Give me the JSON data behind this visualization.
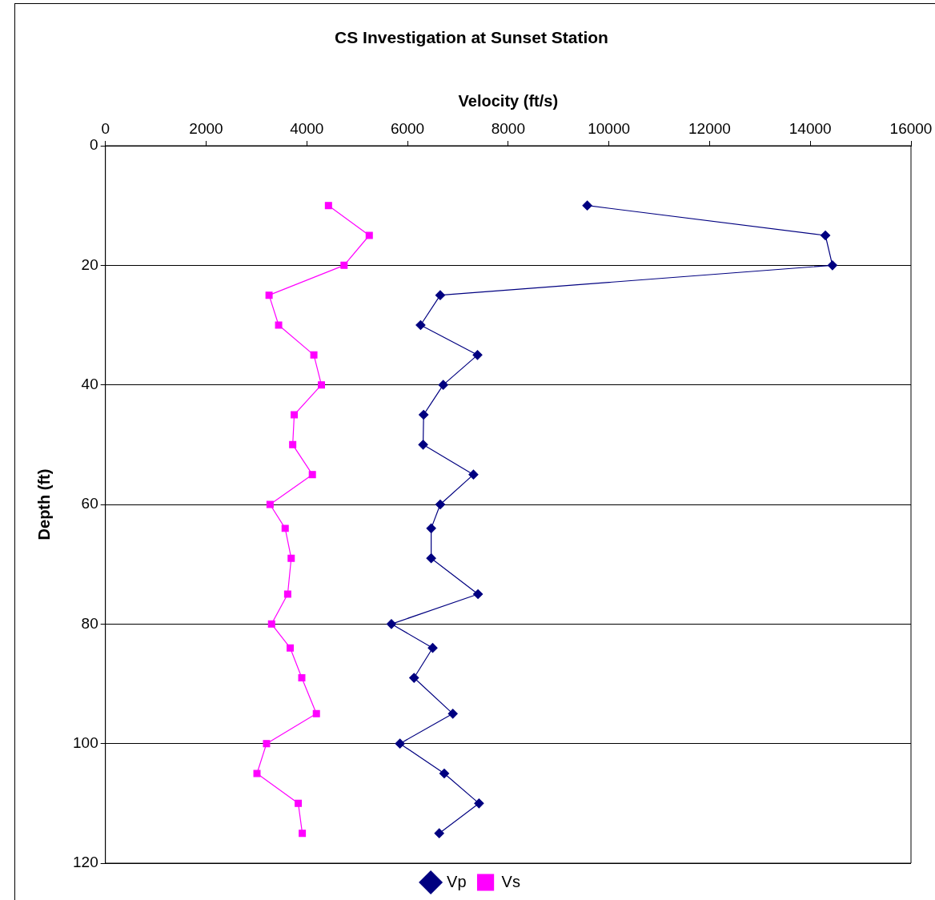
{
  "chart_data": {
    "type": "line",
    "title": "CS Investigation at Sunset Station",
    "xlabel": "Velocity (ft/s)",
    "ylabel": "Depth (ft)",
    "xlim": [
      0,
      16000
    ],
    "xticks": [
      0,
      2000,
      4000,
      6000,
      8000,
      10000,
      12000,
      14000,
      16000
    ],
    "ylim": [
      120,
      0
    ],
    "yticks": [
      0,
      20,
      40,
      60,
      80,
      100,
      120
    ],
    "grid": "y",
    "legend": "bottom",
    "series": [
      {
        "name": "Vp",
        "color": "#000080",
        "marker": "diamond",
        "x": [
          9570,
          14300,
          14440,
          6650,
          6260,
          7390,
          6710,
          6320,
          6310,
          7310,
          6650,
          6470,
          6470,
          7400,
          5680,
          6500,
          6130,
          6900,
          5850,
          6730,
          7420,
          6630
        ],
        "values": [
          10,
          15,
          20,
          25,
          30,
          35,
          40,
          45,
          50,
          55,
          60,
          64,
          69,
          75,
          80,
          84,
          89,
          95,
          100,
          105,
          110,
          115
        ]
      },
      {
        "name": "Vs",
        "color": "#ff00ff",
        "marker": "square",
        "x": [
          4430,
          5240,
          4740,
          3250,
          3440,
          4140,
          4290,
          3750,
          3720,
          4110,
          3270,
          3570,
          3690,
          3620,
          3300,
          3670,
          3900,
          4190,
          3200,
          3010,
          3830,
          3910
        ],
        "values": [
          10,
          15,
          20,
          25,
          30,
          35,
          40,
          45,
          50,
          55,
          60,
          64,
          69,
          75,
          80,
          84,
          89,
          95,
          100,
          105,
          110,
          115
        ]
      }
    ]
  }
}
